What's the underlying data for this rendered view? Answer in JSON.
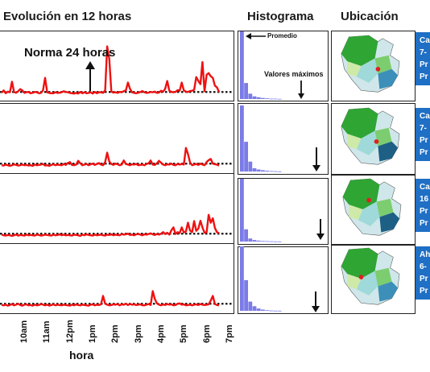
{
  "headers": {
    "evolution": "Evolución en 12 horas",
    "histogram": "Histograma",
    "location": "Ubicación"
  },
  "annotations": {
    "norm": "Norma 24 horas",
    "average": "Promedio",
    "max_values": "Valores máximos"
  },
  "station_info": [
    [
      "Ca",
      "7-",
      "Pr",
      "Pr"
    ],
    [
      "Ca",
      "7-",
      "Pr",
      "Pr"
    ],
    [
      "Ca",
      "16",
      "Pr",
      "Pr"
    ],
    [
      "Ah",
      "6-",
      "Pr",
      "Pr"
    ]
  ],
  "colors": {
    "series": "#ee1111",
    "histogram": "#7b7be8",
    "info_box": "#1f6fc4",
    "norm_line": "#111111"
  },
  "chart_data": {
    "type": "line",
    "xlabel": "hora",
    "x_ticks": [
      "10am",
      "11am",
      "12pm",
      "1pm",
      "2pm",
      "3pm",
      "4pm",
      "5pm",
      "6pm",
      "7pm"
    ],
    "norm_level": 50,
    "panels": [
      {
        "ylim": [
          0,
          420
        ],
        "values": [
          45,
          60,
          42,
          52,
          48,
          115,
          50,
          45,
          55,
          68,
          60,
          44,
          48,
          50,
          42,
          45,
          50,
          48,
          42,
          44,
          60,
          140,
          48,
          44,
          42,
          42,
          48,
          44,
          45,
          48,
          55,
          50,
          48,
          44,
          42,
          40,
          44,
          40,
          50,
          42,
          48,
          42,
          44,
          48,
          40,
          50,
          42,
          48,
          48,
          44,
          60,
          340,
          260,
          52,
          46,
          48,
          44,
          50,
          48,
          55,
          60,
          110,
          70,
          48,
          44,
          42,
          45,
          50,
          56,
          48,
          44,
          46,
          50,
          48,
          52,
          44,
          46,
          58,
          52,
          70,
          120,
          58,
          50,
          48,
          50,
          62,
          58,
          110,
          60,
          52,
          50,
          56,
          58,
          64,
          145,
          120,
          100,
          240,
          55,
          160,
          170,
          150,
          140,
          90,
          80,
          50
        ]
      },
      {
        "ylim": [
          0,
          420
        ],
        "values": [
          40,
          38,
          44,
          40,
          36,
          40,
          45,
          42,
          38,
          40,
          44,
          40,
          42,
          38,
          40,
          36,
          44,
          40,
          42,
          44,
          48,
          38,
          40,
          36,
          42,
          46,
          40,
          44,
          42,
          40,
          48,
          42,
          54,
          60,
          42,
          40,
          44,
          68,
          52,
          40,
          44,
          48,
          40,
          46,
          50,
          42,
          48,
          54,
          44,
          40,
          60,
          120,
          64,
          48,
          42,
          50,
          46,
          40,
          44,
          70,
          48,
          44,
          40,
          46,
          44,
          48,
          40,
          42,
          44,
          40,
          48,
          52,
          70,
          44,
          42,
          52,
          68,
          56,
          44,
          40,
          46,
          44,
          50,
          42,
          40,
          48,
          44,
          48,
          44,
          150,
          112,
          58,
          40,
          44,
          48,
          42,
          50,
          44,
          40,
          60,
          72,
          80,
          50,
          46,
          44,
          38
        ]
      },
      {
        "ylim": [
          0,
          420
        ],
        "values": [
          44,
          40,
          38,
          42,
          40,
          36,
          40,
          44,
          38,
          42,
          40,
          38,
          44,
          40,
          42,
          40,
          38,
          44,
          42,
          38,
          40,
          44,
          42,
          40,
          38,
          44,
          40,
          42,
          46,
          40,
          44,
          40,
          42,
          40,
          38,
          44,
          42,
          40,
          36,
          44,
          40,
          46,
          42,
          40,
          38,
          44,
          40,
          42,
          44,
          40,
          38,
          44,
          42,
          46,
          40,
          44,
          42,
          40,
          48,
          44,
          46,
          50,
          42,
          44,
          40,
          46,
          48,
          44,
          40,
          46,
          44,
          48,
          52,
          46,
          42,
          48,
          44,
          50,
          60,
          48,
          56,
          44,
          72,
          90,
          48,
          60,
          54,
          90,
          58,
          64,
          120,
          70,
          60,
          130,
          68,
          82,
          132,
          90,
          56,
          60,
          170,
          120,
          148,
          86,
          60,
          54
        ]
      },
      {
        "ylim": [
          0,
          420
        ],
        "values": [
          42,
          40,
          44,
          38,
          42,
          48,
          40,
          44,
          50,
          42,
          38,
          44,
          46,
          40,
          42,
          38,
          44,
          40,
          42,
          48,
          44,
          40,
          44,
          38,
          42,
          46,
          40,
          44,
          42,
          40,
          44,
          42,
          40,
          38,
          44,
          40,
          46,
          42,
          40,
          44,
          42,
          40,
          38,
          44,
          46,
          40,
          44,
          42,
          46,
          100,
          50,
          44,
          40,
          42,
          46,
          44,
          48,
          40,
          46,
          44,
          50,
          42,
          48,
          44,
          46,
          42,
          44,
          46,
          40,
          40,
          44,
          48,
          42,
          130,
          80,
          52,
          44,
          40,
          46,
          42,
          48,
          44,
          46,
          40,
          42,
          50,
          52,
          44,
          46,
          40,
          42,
          44,
          40,
          44,
          46,
          42,
          48,
          44,
          42,
          44,
          46,
          70,
          100,
          48,
          42,
          40
        ]
      }
    ],
    "histograms": [
      [
        380,
        90,
        30,
        15,
        10,
        6,
        4,
        2,
        2,
        1
      ],
      [
        400,
        180,
        60,
        20,
        12,
        8,
        5,
        3,
        2,
        1
      ],
      [
        410,
        80,
        20,
        10,
        6,
        4,
        3,
        2,
        1,
        1
      ],
      [
        420,
        200,
        60,
        30,
        15,
        8,
        4,
        2,
        1,
        1
      ]
    ]
  }
}
